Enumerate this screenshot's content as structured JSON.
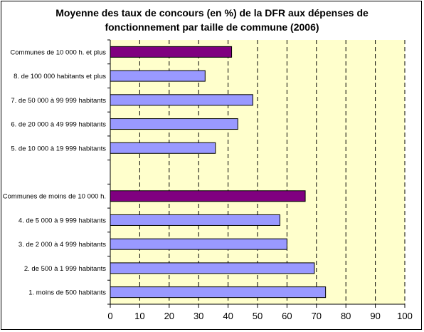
{
  "chart_data": {
    "type": "bar",
    "orientation": "horizontal",
    "title_lines": [
      "Moyenne des taux de concours (en %) de la DFR aux dépenses de",
      "fonctionnement par taille de commune (2006)"
    ],
    "xlim": [
      0,
      100
    ],
    "xticks": [
      "0",
      "10",
      "20",
      "30",
      "40",
      "50",
      "60",
      "70",
      "80",
      "90",
      "100"
    ],
    "grid": true,
    "plot_background": "#ffffcc",
    "colors": {
      "total": "#800080",
      "detail": "#9999ff"
    },
    "categories": [
      "Communes de 10 000 h. et plus",
      "8. de 100 000 habitants et plus",
      "7. de 50 000 à 99 999 habitants",
      "6. de 20 000 à 49 999 habitants",
      "5. de 10 000 à 19 999 habitants",
      "",
      "Communes de moins de 10 000 h.",
      "4. de 5 000 à 9 999 habitants",
      "3. de 2 000 à 4 999 habitants",
      "2. de 500 à 1 999 habitants",
      "1. moins de 500 habitants"
    ],
    "values": [
      41.2,
      32.2,
      48.4,
      43.3,
      35.7,
      null,
      66.2,
      57.6,
      60.0,
      69.3,
      73.1
    ],
    "bar_kind": [
      "total",
      "detail",
      "detail",
      "detail",
      "detail",
      null,
      "total",
      "detail",
      "detail",
      "detail",
      "detail"
    ]
  }
}
